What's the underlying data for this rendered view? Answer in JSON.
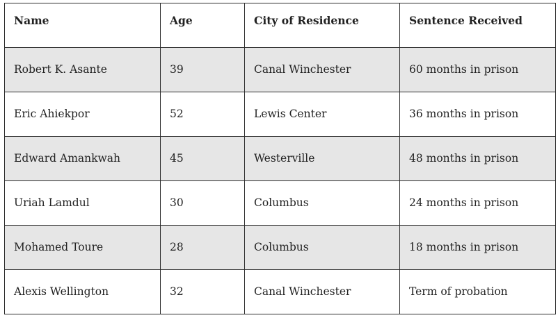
{
  "table": {
    "headers": [
      "Name",
      "Age",
      "City of Residence",
      "Sentence Received"
    ],
    "rows": [
      [
        "Robert K. Asante",
        "39",
        "Canal Winchester",
        "60 months in prison"
      ],
      [
        "Eric Ahiekpor",
        "52",
        "Lewis Center",
        "36 months in prison"
      ],
      [
        "Edward Amankwah",
        "45",
        "Westerville",
        "48 months in prison"
      ],
      [
        "Uriah Lamdul",
        "30",
        "Columbus",
        "24 months in prison"
      ],
      [
        "Mohamed Toure",
        "28",
        "Columbus",
        "18 months in prison"
      ],
      [
        "Alexis Wellington",
        "32",
        "Canal Winchester",
        "Term of probation"
      ]
    ],
    "shaded_row_color": "#e6e6e6",
    "border_color": "#2b2b2b"
  }
}
